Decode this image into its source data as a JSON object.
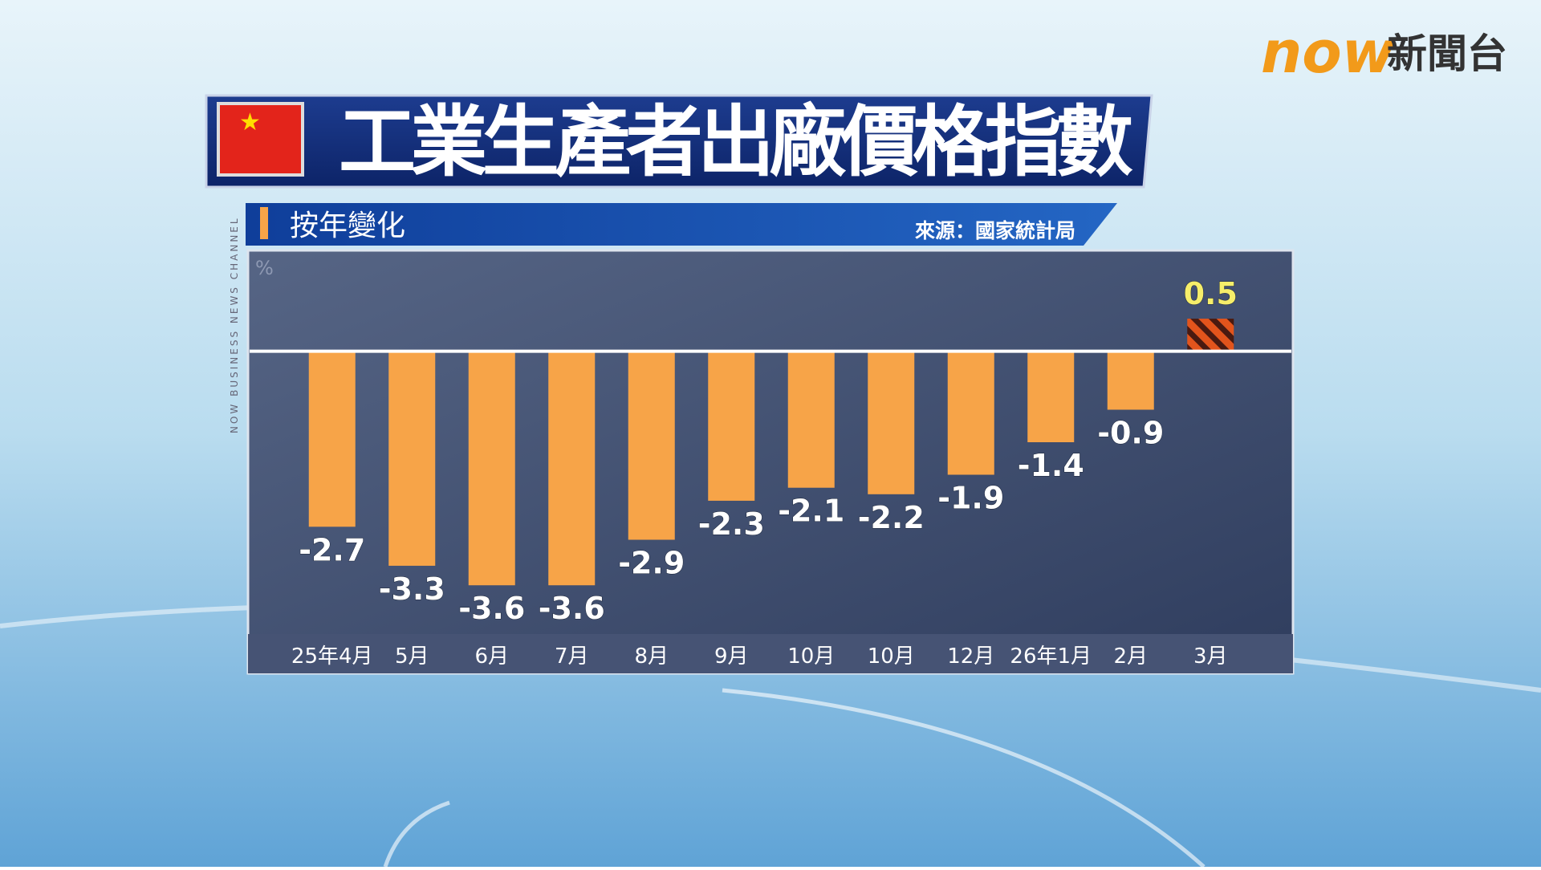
{
  "logo": {
    "brand": "now",
    "channel": "新聞台"
  },
  "side_text": "NOW BUSINESS NEWS CHANNEL",
  "chart_data": {
    "type": "bar",
    "title": "工業生產者出廠價格指數",
    "subtitle": "按年變化",
    "source": "來源：國家統計局",
    "unit": "%",
    "categories": [
      "25年4月",
      "5月",
      "6月",
      "7月",
      "8月",
      "9月",
      "10月",
      "10月",
      "12月",
      "26年1月",
      "2月",
      "3月"
    ],
    "values": [
      -2.7,
      -3.3,
      -3.6,
      -3.6,
      -2.9,
      -2.3,
      -2.1,
      -2.2,
      -1.9,
      -1.4,
      -0.9,
      0.5
    ],
    "colors": [
      "#f7a448",
      "#f7a448",
      "#f7a448",
      "#f7a448",
      "#f7a448",
      "#f7a448",
      "#f7a448",
      "#f7a448",
      "#f7a448",
      "#f7a448",
      "#f7a448",
      "#e2541c"
    ],
    "bar_styles": [
      "solid",
      "solid",
      "solid",
      "solid",
      "solid",
      "solid",
      "solid",
      "solid",
      "solid",
      "solid",
      "solid",
      "hatched"
    ],
    "label_colors": [
      "#ffffff",
      "#ffffff",
      "#ffffff",
      "#ffffff",
      "#ffffff",
      "#ffffff",
      "#ffffff",
      "#ffffff",
      "#ffffff",
      "#ffffff",
      "#ffffff",
      "#f6ee6a"
    ],
    "ylim": [
      -4.35,
      1.55
    ]
  }
}
